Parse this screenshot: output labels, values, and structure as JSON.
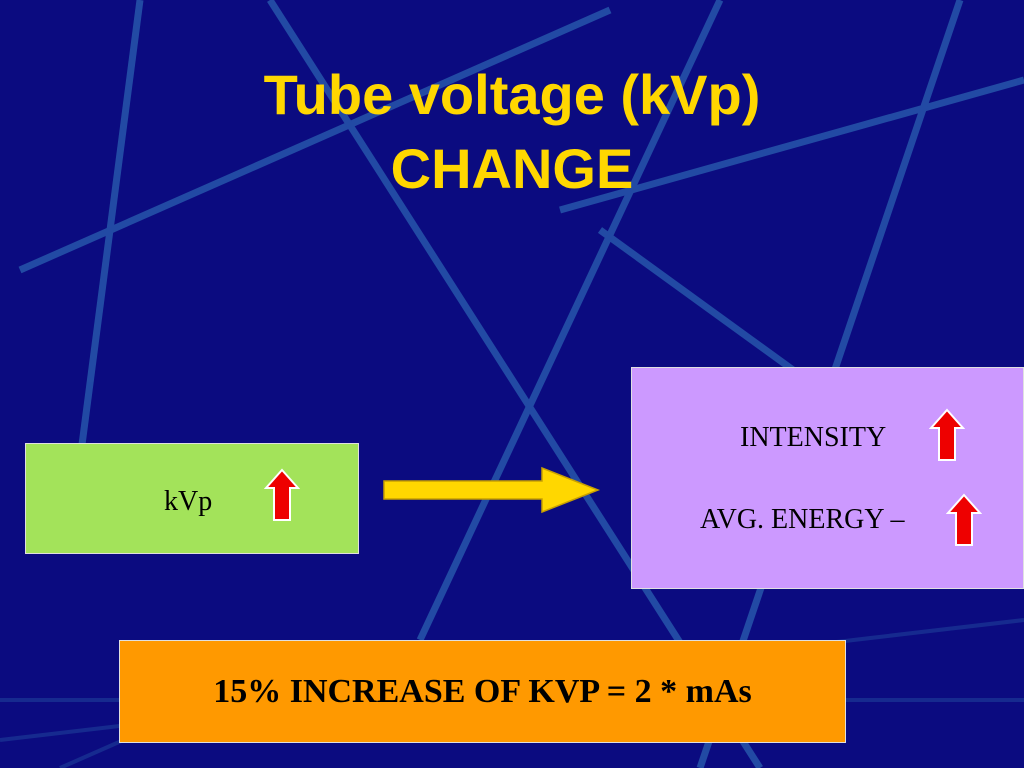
{
  "title": {
    "lines": [
      "Tube voltage (kVp)",
      "CHANGE"
    ]
  },
  "cause": {
    "label": "kVp"
  },
  "effects": [
    "INTENSITY",
    "AVG. ENERGY –"
  ],
  "rule": "15% INCREASE OF KVP = 2 * mAs"
}
